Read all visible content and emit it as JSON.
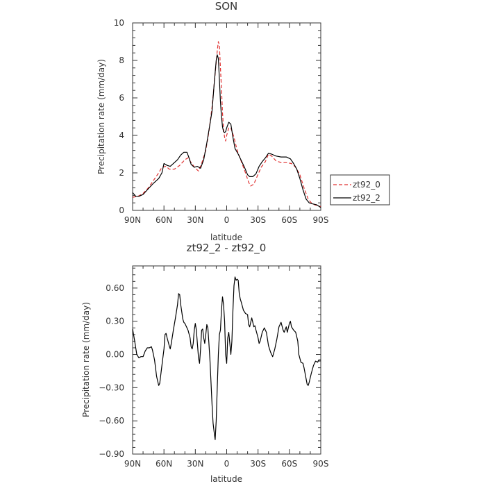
{
  "chart_data": [
    {
      "type": "line",
      "title": "SON",
      "xlabel": "latitude",
      "ylabel": "Precipitation rate (mm/day)",
      "xlim": [
        90,
        -90
      ],
      "ylim": [
        0,
        10
      ],
      "xticks": [
        90,
        60,
        30,
        0,
        -30,
        -60,
        -90
      ],
      "xtick_labels": [
        "90N",
        "60N",
        "30N",
        "0",
        "30S",
        "60S",
        "90S"
      ],
      "yticks": [
        0,
        2,
        4,
        6,
        8,
        10
      ],
      "ytick_labels": [
        "0",
        "2",
        "4",
        "6",
        "8",
        "10"
      ],
      "legend": "outside-right",
      "series": [
        {
          "name": "zt92_0",
          "color": "#e03030",
          "dash": true,
          "points": [
            [
              90,
              0.7
            ],
            [
              85,
              0.75
            ],
            [
              80,
              0.9
            ],
            [
              75,
              1.2
            ],
            [
              70,
              1.6
            ],
            [
              65,
              2.0
            ],
            [
              62,
              2.3
            ],
            [
              58,
              2.35
            ],
            [
              55,
              2.2
            ],
            [
              50,
              2.2
            ],
            [
              45,
              2.4
            ],
            [
              40,
              2.7
            ],
            [
              37,
              2.8
            ],
            [
              34,
              2.55
            ],
            [
              30,
              2.25
            ],
            [
              27,
              2.1
            ],
            [
              24,
              2.5
            ],
            [
              20,
              3.2
            ],
            [
              17,
              4.2
            ],
            [
              14,
              5.5
            ],
            [
              11,
              7.3
            ],
            [
              9,
              8.5
            ],
            [
              8,
              9.0
            ],
            [
              7,
              8.8
            ],
            [
              6,
              7.6
            ],
            [
              5,
              6.5
            ],
            [
              4,
              5.2
            ],
            [
              3,
              4.3
            ],
            [
              2,
              3.9
            ],
            [
              1,
              3.7
            ],
            [
              0,
              4.0
            ],
            [
              -2,
              4.4
            ],
            [
              -4,
              4.4
            ],
            [
              -7,
              3.9
            ],
            [
              -10,
              3.2
            ],
            [
              -14,
              2.6
            ],
            [
              -18,
              2.0
            ],
            [
              -21,
              1.5
            ],
            [
              -23,
              1.3
            ],
            [
              -26,
              1.4
            ],
            [
              -29,
              1.8
            ],
            [
              -33,
              2.3
            ],
            [
              -37,
              2.6
            ],
            [
              -40,
              3.0
            ],
            [
              -43,
              2.9
            ],
            [
              -47,
              2.65
            ],
            [
              -52,
              2.55
            ],
            [
              -57,
              2.55
            ],
            [
              -62,
              2.5
            ],
            [
              -66,
              2.3
            ],
            [
              -70,
              1.9
            ],
            [
              -74,
              1.2
            ],
            [
              -78,
              0.6
            ],
            [
              -81,
              0.4
            ],
            [
              -84,
              0.3
            ],
            [
              -87,
              0.25
            ],
            [
              -90,
              0.2
            ]
          ]
        },
        {
          "name": "zt92_2",
          "color": "#000000",
          "dash": false,
          "points": [
            [
              90,
              0.95
            ],
            [
              87,
              0.75
            ],
            [
              84,
              0.75
            ],
            [
              80,
              0.85
            ],
            [
              75,
              1.15
            ],
            [
              70,
              1.45
            ],
            [
              65,
              1.7
            ],
            [
              62,
              2.0
            ],
            [
              60,
              2.5
            ],
            [
              57,
              2.4
            ],
            [
              54,
              2.35
            ],
            [
              50,
              2.55
            ],
            [
              47,
              2.7
            ],
            [
              44,
              2.95
            ],
            [
              41,
              3.1
            ],
            [
              38,
              3.1
            ],
            [
              36,
              2.8
            ],
            [
              34,
              2.45
            ],
            [
              31,
              2.3
            ],
            [
              28,
              2.35
            ],
            [
              25,
              2.25
            ],
            [
              22,
              2.7
            ],
            [
              19,
              3.6
            ],
            [
              16,
              4.6
            ],
            [
              14,
              5.3
            ],
            [
              12,
              6.7
            ],
            [
              10,
              8.0
            ],
            [
              9,
              8.3
            ],
            [
              8,
              8.1
            ],
            [
              7,
              7.0
            ],
            [
              6,
              5.8
            ],
            [
              5,
              5.0
            ],
            [
              4,
              4.45
            ],
            [
              3,
              4.2
            ],
            [
              2,
              4.15
            ],
            [
              1,
              4.2
            ],
            [
              0,
              4.4
            ],
            [
              -2,
              4.7
            ],
            [
              -4,
              4.6
            ],
            [
              -6,
              3.9
            ],
            [
              -8,
              3.3
            ],
            [
              -11,
              3.0
            ],
            [
              -14,
              2.65
            ],
            [
              -17,
              2.3
            ],
            [
              -20,
              1.9
            ],
            [
              -22,
              1.8
            ],
            [
              -25,
              1.8
            ],
            [
              -28,
              1.95
            ],
            [
              -31,
              2.35
            ],
            [
              -34,
              2.6
            ],
            [
              -37,
              2.8
            ],
            [
              -40,
              3.05
            ],
            [
              -43,
              3.0
            ],
            [
              -47,
              2.9
            ],
            [
              -52,
              2.85
            ],
            [
              -57,
              2.85
            ],
            [
              -61,
              2.75
            ],
            [
              -64,
              2.5
            ],
            [
              -67,
              2.2
            ],
            [
              -70,
              1.7
            ],
            [
              -73,
              1.1
            ],
            [
              -76,
              0.6
            ],
            [
              -79,
              0.4
            ],
            [
              -82,
              0.35
            ],
            [
              -86,
              0.3
            ],
            [
              -90,
              0.15
            ]
          ]
        }
      ]
    },
    {
      "type": "line",
      "title": "zt92_2 - zt92_0",
      "xlabel": "latitude",
      "ylabel": "Precipitation rate (mm/day)",
      "xlim": [
        90,
        -90
      ],
      "ylim": [
        -0.9,
        0.8
      ],
      "xticks": [
        90,
        60,
        30,
        0,
        -30,
        -60,
        -90
      ],
      "xtick_labels": [
        "90N",
        "60N",
        "30N",
        "0",
        "30S",
        "60S",
        "90S"
      ],
      "yticks": [
        -0.9,
        -0.6,
        -0.3,
        0,
        0.3,
        0.6
      ],
      "ytick_labels": [
        "−0.90",
        "−0.60",
        "−0.30",
        "0.00",
        "0.30",
        "0.60"
      ],
      "series": [
        {
          "color": "#000000",
          "dash": false,
          "points": [
            [
              90,
              0.23
            ],
            [
              88,
              0.12
            ],
            [
              86,
              0.0
            ],
            [
              84,
              -0.03
            ],
            [
              82,
              -0.02
            ],
            [
              80,
              -0.02
            ],
            [
              78,
              0.03
            ],
            [
              76,
              0.06
            ],
            [
              74,
              0.06
            ],
            [
              72,
              0.07
            ],
            [
              71,
              0.04
            ],
            [
              69,
              -0.05
            ],
            [
              67,
              -0.2
            ],
            [
              65,
              -0.28
            ],
            [
              64,
              -0.26
            ],
            [
              62,
              -0.1
            ],
            [
              60,
              0.05
            ],
            [
              59,
              0.18
            ],
            [
              58,
              0.19
            ],
            [
              57,
              0.15
            ],
            [
              55,
              0.08
            ],
            [
              54,
              0.05
            ],
            [
              53,
              0.1
            ],
            [
              51,
              0.22
            ],
            [
              49,
              0.33
            ],
            [
              47,
              0.45
            ],
            [
              46,
              0.55
            ],
            [
              45,
              0.54
            ],
            [
              44,
              0.45
            ],
            [
              42,
              0.32
            ],
            [
              41,
              0.29
            ],
            [
              40,
              0.28
            ],
            [
              38,
              0.24
            ],
            [
              37,
              0.22
            ],
            [
              35,
              0.15
            ],
            [
              34,
              0.07
            ],
            [
              33,
              0.05
            ],
            [
              32,
              0.1
            ],
            [
              31,
              0.22
            ],
            [
              30,
              0.28
            ],
            [
              29,
              0.22
            ],
            [
              28,
              0.1
            ],
            [
              27,
              -0.03
            ],
            [
              26,
              -0.08
            ],
            [
              25,
              0.05
            ],
            [
              24,
              0.22
            ],
            [
              23,
              0.23
            ],
            [
              22,
              0.15
            ],
            [
              21,
              0.1
            ],
            [
              20,
              0.18
            ],
            [
              19,
              0.27
            ],
            [
              18,
              0.24
            ],
            [
              17,
              0.1
            ],
            [
              16,
              -0.05
            ],
            [
              15,
              -0.25
            ],
            [
              14,
              -0.45
            ],
            [
              13,
              -0.62
            ],
            [
              12,
              -0.7
            ],
            [
              11,
              -0.77
            ],
            [
              10,
              -0.6
            ],
            [
              9,
              -0.3
            ],
            [
              8,
              0.0
            ],
            [
              7,
              0.18
            ],
            [
              6,
              0.22
            ],
            [
              5,
              0.4
            ],
            [
              4,
              0.52
            ],
            [
              3,
              0.45
            ],
            [
              2,
              0.3
            ],
            [
              1,
              0.0
            ],
            [
              0,
              -0.08
            ],
            [
              -1,
              0.15
            ],
            [
              -2,
              0.2
            ],
            [
              -3,
              0.1
            ],
            [
              -4,
              0.0
            ],
            [
              -5,
              0.12
            ],
            [
              -6,
              0.4
            ],
            [
              -7,
              0.62
            ],
            [
              -8,
              0.7
            ],
            [
              -9,
              0.67
            ],
            [
              -10,
              0.68
            ],
            [
              -11,
              0.67
            ],
            [
              -12,
              0.55
            ],
            [
              -13,
              0.5
            ],
            [
              -14,
              0.47
            ],
            [
              -16,
              0.4
            ],
            [
              -18,
              0.37
            ],
            [
              -20,
              0.36
            ],
            [
              -21,
              0.27
            ],
            [
              -22,
              0.25
            ],
            [
              -24,
              0.33
            ],
            [
              -25,
              0.29
            ],
            [
              -26,
              0.25
            ],
            [
              -27,
              0.26
            ],
            [
              -28,
              0.22
            ],
            [
              -30,
              0.15
            ],
            [
              -31,
              0.1
            ],
            [
              -32,
              0.12
            ],
            [
              -34,
              0.2
            ],
            [
              -36,
              0.24
            ],
            [
              -38,
              0.2
            ],
            [
              -40,
              0.08
            ],
            [
              -42,
              0.02
            ],
            [
              -44,
              -0.02
            ],
            [
              -46,
              0.05
            ],
            [
              -48,
              0.14
            ],
            [
              -50,
              0.25
            ],
            [
              -52,
              0.29
            ],
            [
              -54,
              0.22
            ],
            [
              -55,
              0.2
            ],
            [
              -57,
              0.25
            ],
            [
              -58,
              0.2
            ],
            [
              -60,
              0.28
            ],
            [
              -61,
              0.3
            ],
            [
              -62,
              0.25
            ],
            [
              -64,
              0.22
            ],
            [
              -66,
              0.2
            ],
            [
              -68,
              0.12
            ],
            [
              -69,
              0.0
            ],
            [
              -71,
              -0.07
            ],
            [
              -73,
              -0.08
            ],
            [
              -74,
              -0.12
            ],
            [
              -76,
              -0.22
            ],
            [
              -77,
              -0.27
            ],
            [
              -78,
              -0.28
            ],
            [
              -79,
              -0.25
            ],
            [
              -81,
              -0.17
            ],
            [
              -83,
              -0.1
            ],
            [
              -85,
              -0.06
            ],
            [
              -87,
              -0.07
            ],
            [
              -88,
              -0.05
            ],
            [
              -90,
              -0.05
            ]
          ]
        }
      ]
    }
  ]
}
